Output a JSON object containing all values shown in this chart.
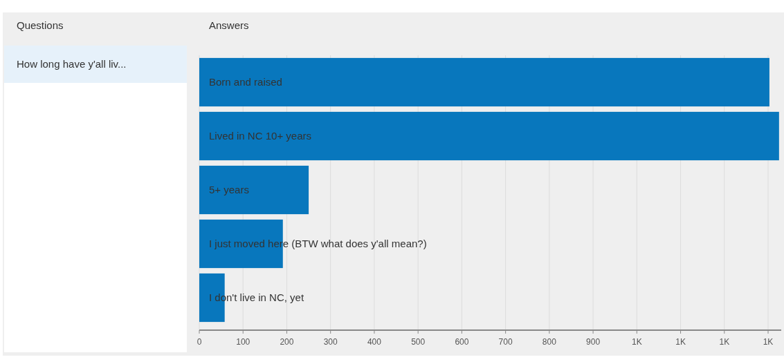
{
  "chart_data": {
    "type": "bar",
    "orientation": "horizontal",
    "title": "Answers",
    "annotations": [
      "Questions",
      "How long have y'all liv..."
    ],
    "categories": [
      "Born and raised",
      "Lived in NC 10+ years",
      "5+ years",
      "I just moved here (BTW what does y'all mean?)",
      "I don't live in NC, yet"
    ],
    "values": [
      1303,
      1325,
      250,
      191,
      58
    ],
    "color": "#0877bd",
    "xlim": [
      0,
      1330
    ],
    "xticks": [
      0,
      100,
      200,
      300,
      400,
      500,
      600,
      700,
      800,
      900,
      {
        "value": 1000,
        "label": "1K"
      },
      {
        "value": 1100,
        "label": "1K"
      },
      {
        "value": 1200,
        "label": "1K"
      },
      {
        "value": 1300,
        "label": "1K"
      }
    ],
    "grid": "x"
  }
}
